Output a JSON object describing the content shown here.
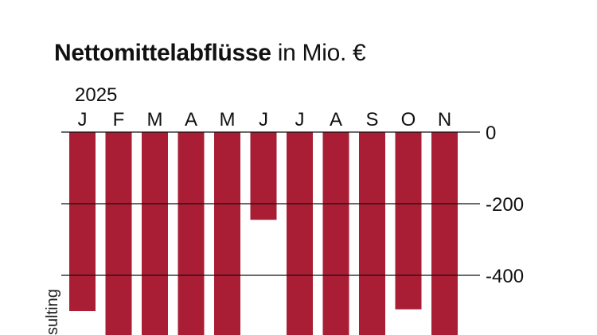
{
  "chart_data": {
    "type": "bar",
    "title_bold": "Nettomittelabflüsse",
    "title_rest": "in Mio. €",
    "year_label": "2025",
    "categories": [
      "J",
      "F",
      "M",
      "A",
      "M",
      "J",
      "J",
      "A",
      "S",
      "O",
      "N"
    ],
    "values": [
      -500,
      -600,
      -600,
      -600,
      -600,
      -245,
      -600,
      -600,
      -600,
      -495,
      -600
    ],
    "yticks": [
      0,
      -200,
      -400
    ],
    "ytick_labels": [
      "0",
      "-200",
      "-400"
    ],
    "ylim": [
      -570,
      0
    ],
    "grid": true,
    "axis_side": "right",
    "bar_color": "#a91e35"
  },
  "source_credit": "sulting"
}
